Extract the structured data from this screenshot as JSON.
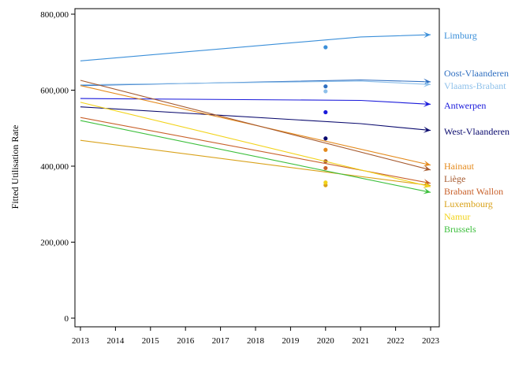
{
  "chart_data": {
    "type": "line",
    "title": "",
    "xlabel": "",
    "ylabel": "Fitted Utilisation Rate",
    "xlim": [
      2013,
      2023
    ],
    "ylim": [
      0,
      800000
    ],
    "x_ticks": [
      2013,
      2014,
      2015,
      2016,
      2017,
      2018,
      2019,
      2020,
      2021,
      2022,
      2023
    ],
    "y_ticks": [
      0,
      200000,
      400000,
      600000,
      800000
    ],
    "y_tick_labels": [
      "0",
      "200,000",
      "400,000",
      "600,000",
      "800,000"
    ],
    "grid": false,
    "legend": "right-end labels",
    "series": [
      {
        "name": "Limburg",
        "color": "#3b8fd9",
        "x": [
          2013,
          2021,
          2023
        ],
        "values": [
          677000,
          740000,
          746000
        ],
        "point_2020": 713000
      },
      {
        "name": "Oost-Vlaanderen",
        "color": "#2f6fc0",
        "x": [
          2013,
          2021,
          2023
        ],
        "values": [
          612000,
          627000,
          622000
        ],
        "point_2020": 610000
      },
      {
        "name": "Vlaams-Brabant",
        "color": "#8ec0ea",
        "x": [
          2013,
          2021,
          2023
        ],
        "values": [
          614000,
          624000,
          615000
        ],
        "point_2020": 597000
      },
      {
        "name": "Antwerpen",
        "color": "#1a1adb",
        "x": [
          2013,
          2021,
          2023
        ],
        "values": [
          578000,
          573000,
          563000
        ],
        "point_2020": 542000
      },
      {
        "name": "West-Vlaanderen",
        "color": "#0a0a6e",
        "x": [
          2013,
          2021,
          2023
        ],
        "values": [
          556000,
          512000,
          494000
        ],
        "point_2020": 473000
      },
      {
        "name": "Hainaut",
        "color": "#e48a1c",
        "x": [
          2013,
          2023
        ],
        "values": [
          612000,
          403000
        ],
        "point_2020": 443000
      },
      {
        "name": "Liège",
        "color": "#a65a2f",
        "x": [
          2013,
          2023
        ],
        "values": [
          626000,
          390000
        ],
        "point_2020": 413000
      },
      {
        "name": "Brabant Wallon",
        "color": "#c8602a",
        "x": [
          2013,
          2023
        ],
        "values": [
          528000,
          355000
        ],
        "point_2020": 395000
      },
      {
        "name": "Luxembourg",
        "color": "#d9a21b",
        "x": [
          2013,
          2023
        ],
        "values": [
          468000,
          349000
        ],
        "point_2020": 350000
      },
      {
        "name": "Namur",
        "color": "#f2d31a",
        "x": [
          2013,
          2023
        ],
        "values": [
          568000,
          346000
        ],
        "point_2020": 357000
      },
      {
        "name": "Brussels",
        "color": "#3cbf3c",
        "x": [
          2013,
          2023
        ],
        "values": [
          520000,
          331000
        ],
        "point_2020": null
      }
    ]
  }
}
